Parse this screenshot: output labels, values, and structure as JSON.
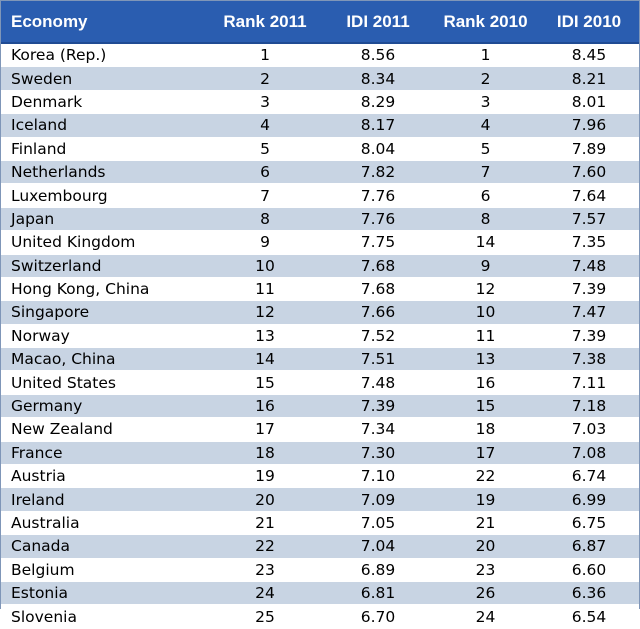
{
  "headers": {
    "economy": "Economy",
    "rank_2011": "Rank 2011",
    "idi_2011": "IDI 2011",
    "rank_2010": "Rank 2010",
    "idi_2010": "IDI 2010"
  },
  "rows": [
    {
      "economy": "Korea (Rep.)",
      "rank_2011": "1",
      "idi_2011": "8.56",
      "rank_2010": "1",
      "idi_2010": "8.45"
    },
    {
      "economy": "Sweden",
      "rank_2011": "2",
      "idi_2011": "8.34",
      "rank_2010": "2",
      "idi_2010": "8.21"
    },
    {
      "economy": "Denmark",
      "rank_2011": "3",
      "idi_2011": "8.29",
      "rank_2010": "3",
      "idi_2010": "8.01"
    },
    {
      "economy": "Iceland",
      "rank_2011": "4",
      "idi_2011": "8.17",
      "rank_2010": "4",
      "idi_2010": "7.96"
    },
    {
      "economy": "Finland",
      "rank_2011": "5",
      "idi_2011": "8.04",
      "rank_2010": "5",
      "idi_2010": "7.89"
    },
    {
      "economy": "Netherlands",
      "rank_2011": "6",
      "idi_2011": "7.82",
      "rank_2010": "7",
      "idi_2010": "7.60"
    },
    {
      "economy": "Luxembourg",
      "rank_2011": "7",
      "idi_2011": "7.76",
      "rank_2010": "6",
      "idi_2010": "7.64"
    },
    {
      "economy": "Japan",
      "rank_2011": "8",
      "idi_2011": "7.76",
      "rank_2010": "8",
      "idi_2010": "7.57"
    },
    {
      "economy": "United Kingdom",
      "rank_2011": "9",
      "idi_2011": "7.75",
      "rank_2010": "14",
      "idi_2010": "7.35"
    },
    {
      "economy": "Switzerland",
      "rank_2011": "10",
      "idi_2011": "7.68",
      "rank_2010": "9",
      "idi_2010": "7.48"
    },
    {
      "economy": "Hong Kong, China",
      "rank_2011": "11",
      "idi_2011": "7.68",
      "rank_2010": "12",
      "idi_2010": "7.39"
    },
    {
      "economy": "Singapore",
      "rank_2011": "12",
      "idi_2011": "7.66",
      "rank_2010": "10",
      "idi_2010": "7.47"
    },
    {
      "economy": "Norway",
      "rank_2011": "13",
      "idi_2011": "7.52",
      "rank_2010": "11",
      "idi_2010": "7.39"
    },
    {
      "economy": "Macao, China",
      "rank_2011": "14",
      "idi_2011": "7.51",
      "rank_2010": "13",
      "idi_2010": "7.38"
    },
    {
      "economy": "United States",
      "rank_2011": "15",
      "idi_2011": "7.48",
      "rank_2010": "16",
      "idi_2010": "7.11"
    },
    {
      "economy": "Germany",
      "rank_2011": "16",
      "idi_2011": "7.39",
      "rank_2010": "15",
      "idi_2010": "7.18"
    },
    {
      "economy": "New Zealand",
      "rank_2011": "17",
      "idi_2011": "7.34",
      "rank_2010": "18",
      "idi_2010": "7.03"
    },
    {
      "economy": "France",
      "rank_2011": "18",
      "idi_2011": "7.30",
      "rank_2010": "17",
      "idi_2010": "7.08"
    },
    {
      "economy": "Austria",
      "rank_2011": "19",
      "idi_2011": "7.10",
      "rank_2010": "22",
      "idi_2010": "6.74"
    },
    {
      "economy": "Ireland",
      "rank_2011": "20",
      "idi_2011": "7.09",
      "rank_2010": "19",
      "idi_2010": "6.99"
    },
    {
      "economy": "Australia",
      "rank_2011": "21",
      "idi_2011": "7.05",
      "rank_2010": "21",
      "idi_2010": "6.75"
    },
    {
      "economy": "Canada",
      "rank_2011": "22",
      "idi_2011": "7.04",
      "rank_2010": "20",
      "idi_2010": "6.87"
    },
    {
      "economy": "Belgium",
      "rank_2011": "23",
      "idi_2011": "6.89",
      "rank_2010": "23",
      "idi_2010": "6.60"
    },
    {
      "economy": "Estonia",
      "rank_2011": "24",
      "idi_2011": "6.81",
      "rank_2010": "26",
      "idi_2010": "6.36"
    },
    {
      "economy": "Slovenia",
      "rank_2011": "25",
      "idi_2011": "6.70",
      "rank_2010": "24",
      "idi_2010": "6.54"
    }
  ],
  "colors": {
    "header_bg": "#2a5db0",
    "header_text": "#ffffff",
    "row_alt_bg": "#c8d4e3"
  }
}
